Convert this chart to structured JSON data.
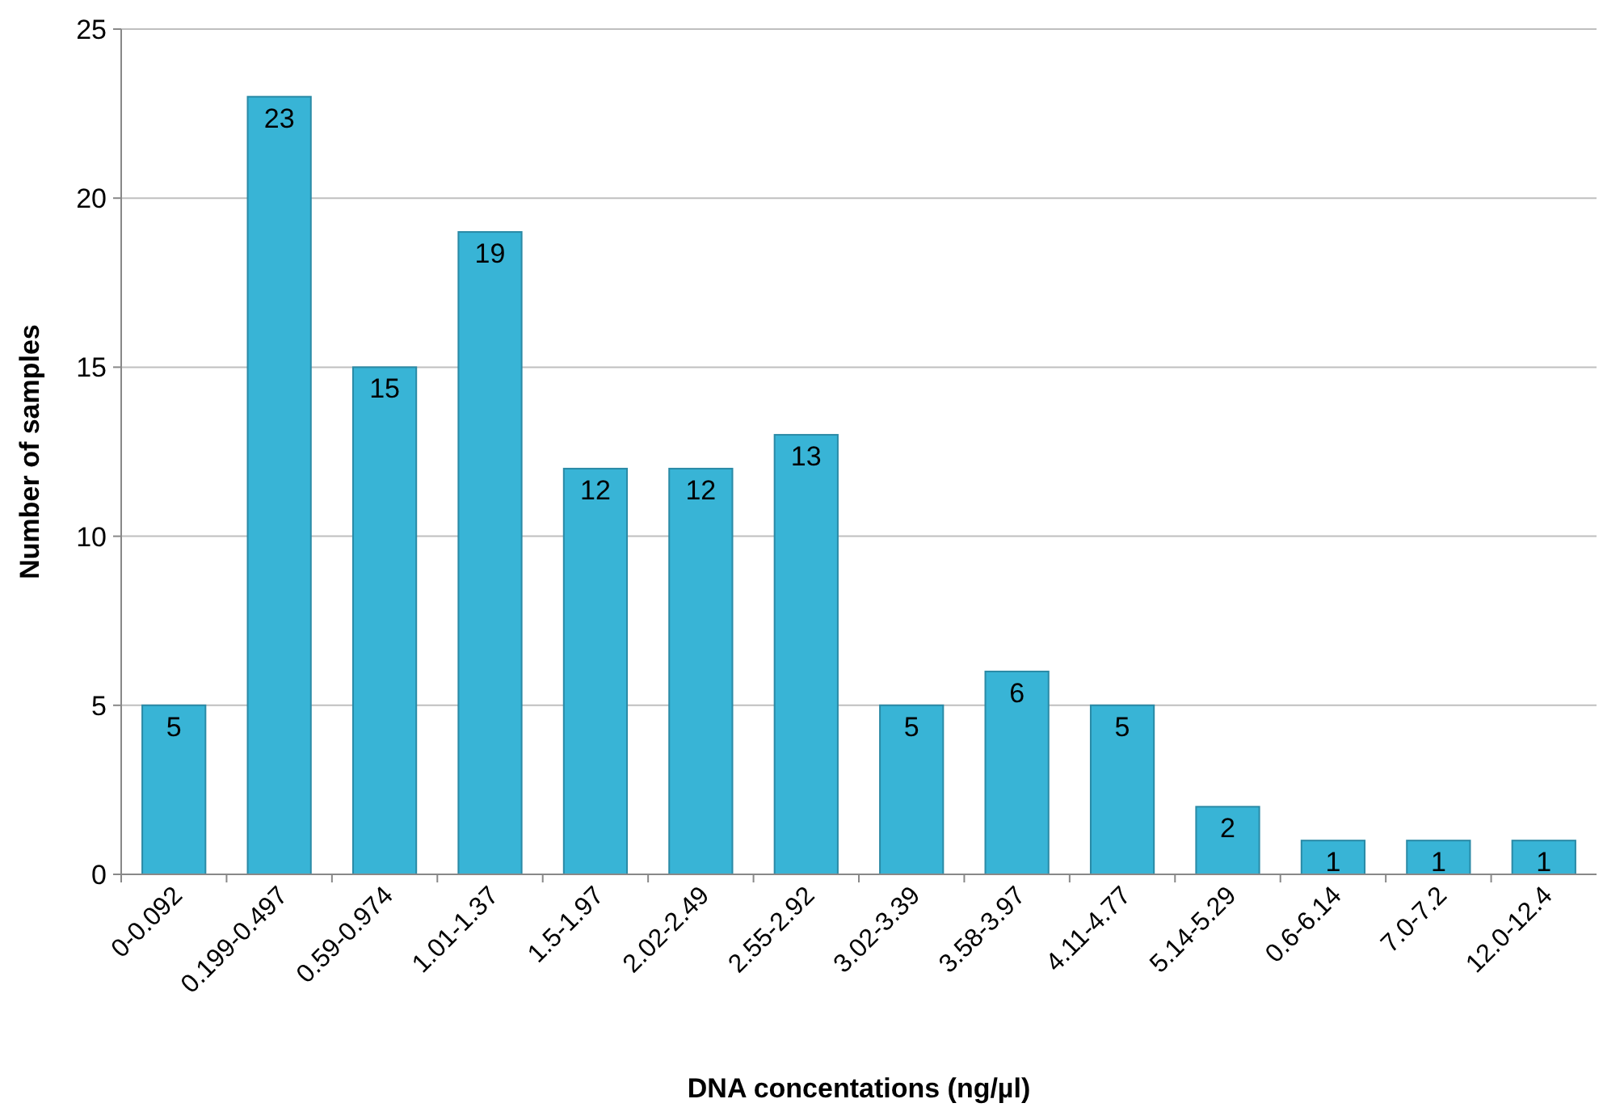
{
  "chart_data": {
    "type": "bar",
    "xlabel": "DNA concentations (ng/µl)",
    "ylabel": "Number of samples",
    "categories": [
      "0-0.092",
      "0.199-0.497",
      "0.59-0.974",
      "1.01-1.37",
      "1.5-1.97",
      "2.02-2.49",
      "2.55-2.92",
      "3.02-3.39",
      "3.58-3.97",
      "4.11-4.77",
      "5.14-5.29",
      "0.6-6.14",
      "7.0-7.2",
      "12.0-12.4"
    ],
    "values": [
      5,
      23,
      15,
      19,
      12,
      12,
      13,
      5,
      6,
      5,
      2,
      1,
      1,
      1
    ],
    "color": "#38b4d6",
    "ylim": [
      0,
      25
    ],
    "yticks": [
      0,
      5,
      10,
      15,
      20,
      25
    ],
    "grid": "y",
    "data_labels": true
  }
}
